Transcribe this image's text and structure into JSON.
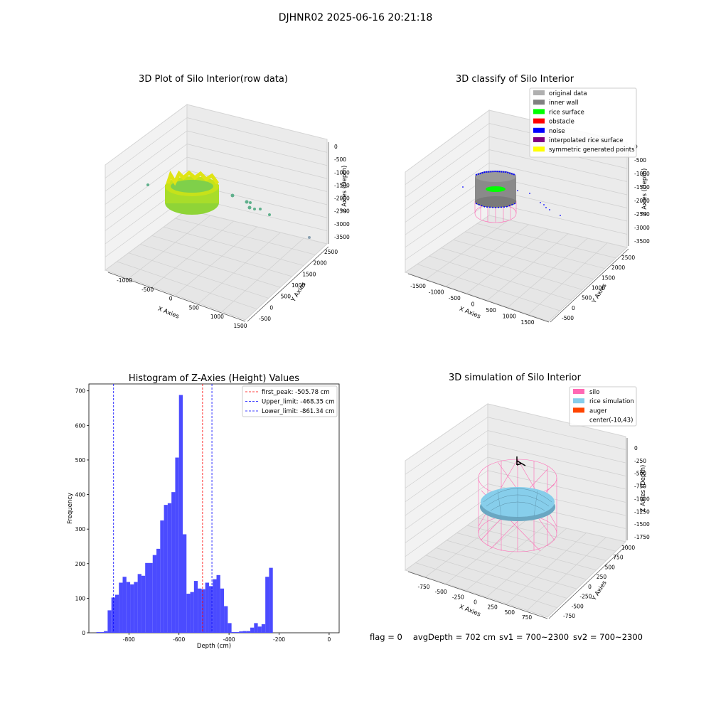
{
  "suptitle": "DJHNR02 2025-06-16 20:21:18",
  "panels": {
    "raw": {
      "title": "3D Plot of Silo Interior(row data)",
      "xlabel": "X Axies",
      "ylabel": "Y Axies",
      "zlabel": "Z Axies (Depth)",
      "xticks": [
        "-1000",
        "-500",
        "0",
        "500",
        "1000",
        "1500"
      ],
      "yticks": [
        "-500",
        "0",
        "500",
        "1000",
        "1500",
        "2000",
        "2500"
      ],
      "zticks": [
        "0",
        "-500",
        "-1000",
        "-1500",
        "-2000",
        "-2500",
        "-3000",
        "-3500"
      ]
    },
    "classify": {
      "title": "3D classify of Silo Interior",
      "xlabel": "X Axies",
      "ylabel": "Y Axies",
      "zlabel": "Z Axies (Depth)",
      "xticks": [
        "-1500",
        "-1000",
        "-500",
        "0",
        "500",
        "1000",
        "1500"
      ],
      "yticks": [
        "-500",
        "0",
        "500",
        "1000",
        "1500",
        "2000",
        "2500"
      ],
      "zticks": [
        "0",
        "-500",
        "-1000",
        "-1500",
        "-2000",
        "-2500",
        "-3000",
        "-3500"
      ],
      "legend": [
        {
          "label": "original data",
          "color": "#b0b0b0"
        },
        {
          "label": "inner wall",
          "color": "#808080"
        },
        {
          "label": "rice surface",
          "color": "#00ff00"
        },
        {
          "label": "obstacle",
          "color": "#ff0000"
        },
        {
          "label": "noise",
          "color": "#0000ff"
        },
        {
          "label": "interpolated rice surface",
          "color": "#800080"
        },
        {
          "label": "symmetric generated points",
          "color": "#ffff00"
        }
      ]
    },
    "simulation": {
      "title": "3D simulation of Silo Interior",
      "xlabel": "X Axies",
      "ylabel": "Y Axies",
      "zlabel": "Z Axies (Depth)",
      "xticks": [
        "-750",
        "-500",
        "-250",
        "0",
        "250",
        "500",
        "750"
      ],
      "yticks": [
        "-750",
        "-500",
        "-250",
        "0",
        "250",
        "500",
        "750",
        "1000"
      ],
      "zticks": [
        "0",
        "-250",
        "-500",
        "-750",
        "-1000",
        "-1250",
        "-1500",
        "-1750"
      ],
      "legend": [
        {
          "label": "silo",
          "color": "#ff69b4"
        },
        {
          "label": "rice simulation",
          "color": "#87ceeb"
        },
        {
          "label": "auger",
          "color": "#ff4500"
        },
        {
          "label": "center(-10,43)",
          "color": "none"
        }
      ]
    }
  },
  "status": {
    "flag": "flag = 0",
    "avg_depth": "avgDepth = 702 cm",
    "sv1": "sv1 = 700~2300",
    "sv2": "sv2 = 700~2300"
  },
  "chart_data": [
    {
      "type": "scatter",
      "title": "3D Plot of Silo Interior(row data)",
      "xlabel": "X Axies",
      "ylabel": "Y Axies",
      "zlabel": "Z Axies (Depth)",
      "xlim": [
        -1300,
        1500
      ],
      "ylim": [
        -500,
        2600
      ],
      "zlim": [
        -3600,
        0
      ]
    },
    {
      "type": "scatter",
      "title": "3D classify of Silo Interior",
      "xlabel": "X Axies",
      "ylabel": "Y Axies",
      "zlabel": "Z Axies (Depth)",
      "xlim": [
        -1700,
        1700
      ],
      "ylim": [
        -600,
        2700
      ],
      "zlim": [
        -3500,
        0
      ],
      "legend_position": "top-right"
    },
    {
      "type": "bar",
      "title": "Histogram of Z-Axies (Height) Values",
      "xlabel": "Depth (cm)",
      "ylabel": "Frequency",
      "xlim": [
        -960,
        40
      ],
      "ylim": [
        0,
        720
      ],
      "xticks": [
        -800,
        -600,
        -400,
        -200,
        0
      ],
      "yticks": [
        0,
        100,
        200,
        300,
        400,
        500,
        600,
        700
      ],
      "bin_start": -930,
      "bin_width": 15,
      "values": [
        2,
        2,
        5,
        65,
        102,
        110,
        145,
        162,
        147,
        140,
        147,
        170,
        165,
        202,
        202,
        225,
        243,
        325,
        370,
        375,
        407,
        507,
        688,
        285,
        113,
        118,
        150,
        128,
        126,
        145,
        135,
        155,
        167,
        128,
        77,
        28,
        2,
        2,
        4,
        5,
        5,
        15,
        28,
        18,
        25,
        162,
        188
      ],
      "lines": [
        {
          "label": "first_peak: -505.78 cm",
          "value": -505.78,
          "color": "#ff0000"
        },
        {
          "label": "Upper_limit: -468.35 cm",
          "value": -468.35,
          "color": "#0000ff"
        },
        {
          "label": "Lower_limit: -861.34 cm",
          "value": -861.34,
          "color": "#0000ff"
        }
      ],
      "bar_color": "#4b4bff",
      "legend_position": "top-right"
    },
    {
      "type": "scatter",
      "title": "3D simulation of Silo Interior",
      "xlabel": "X Axies",
      "ylabel": "Y Axies",
      "zlabel": "Z Axies (Depth)",
      "xlim": [
        -900,
        900
      ],
      "ylim": [
        -850,
        1050
      ],
      "zlim": [
        -1850,
        100
      ],
      "legend_position": "top-right"
    }
  ]
}
